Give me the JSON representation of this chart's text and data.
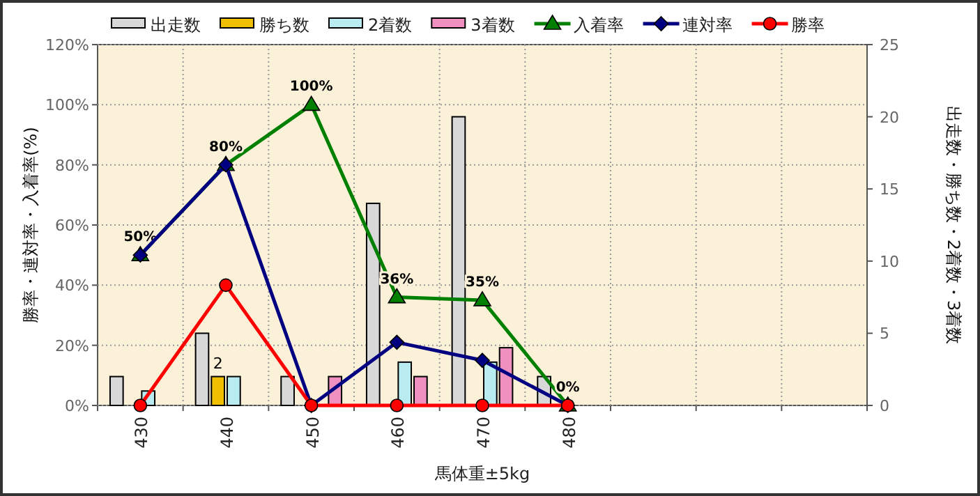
{
  "chart_data": {
    "type": "bar",
    "xlabel": "馬体重±5kg",
    "ylabel": "勝率・連対率・入着率(%)",
    "y2label": "出走数・勝ち数・2着数・3着数",
    "categories": [
      "430",
      "440",
      "450",
      "460",
      "470",
      "480",
      null,
      null,
      null
    ],
    "series": [
      {
        "name": "出走数",
        "axis": "y2",
        "color": "#d8d8d8",
        "values": [
          2,
          5,
          2,
          14,
          20,
          2,
          null,
          null,
          null
        ]
      },
      {
        "name": "勝ち数",
        "axis": "y2",
        "color": "#f0c000",
        "values": [
          0,
          2,
          0,
          0,
          0,
          0,
          null,
          null,
          null
        ],
        "value_labels": [
          null,
          "2",
          null,
          null,
          null,
          null,
          null,
          null,
          null
        ]
      },
      {
        "name": "2着数",
        "axis": "y2",
        "color": "#b8ecf0",
        "values": [
          1,
          2,
          0,
          3,
          3,
          0,
          null,
          null,
          null
        ]
      },
      {
        "name": "3着数",
        "axis": "y2",
        "color": "#f090c0",
        "values": [
          0,
          0,
          2,
          2,
          4,
          0,
          null,
          null,
          null
        ]
      },
      {
        "name": "入着率",
        "type": "line",
        "color": "#008000",
        "marker": "triangle",
        "values": [
          50,
          80,
          100,
          36,
          35,
          0,
          null,
          null,
          null
        ],
        "value_labels": [
          "50%",
          "80%",
          "100%",
          "36%",
          "35%",
          "0%",
          null,
          null,
          null
        ]
      },
      {
        "name": "連対率",
        "type": "line",
        "color": "#000080",
        "marker": "diamond",
        "values": [
          50,
          80,
          0,
          21,
          15,
          0,
          null,
          null,
          null
        ]
      },
      {
        "name": "勝率",
        "type": "line",
        "color": "#ff0000",
        "marker": "circle",
        "values": [
          0,
          40,
          0,
          0,
          0,
          0,
          null,
          null,
          null
        ]
      }
    ],
    "ylim": [
      0,
      120
    ],
    "yticks": [
      {
        "value": 0,
        "label": "0%"
      },
      {
        "value": 20,
        "label": "20%"
      },
      {
        "value": 40,
        "label": "40%"
      },
      {
        "value": 60,
        "label": "60%"
      },
      {
        "value": 80,
        "label": "80%"
      },
      {
        "value": 100,
        "label": "100%"
      },
      {
        "value": 120,
        "label": "120%"
      }
    ],
    "y2lim": [
      0,
      25
    ],
    "y2ticks": [
      0,
      5,
      10,
      15,
      20,
      25
    ],
    "grid": true,
    "legend": "top",
    "line_style": "solid"
  }
}
